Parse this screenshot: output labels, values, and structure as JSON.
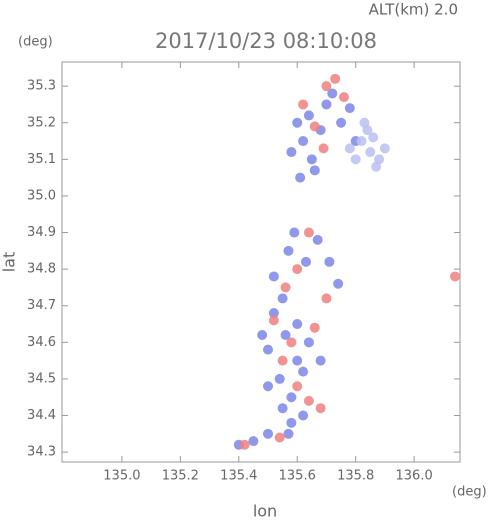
{
  "chart_data": {
    "type": "scatter",
    "alt_label": "ALT(km) 2.0",
    "title": "2017/10/23 08:10:08",
    "y_unit": "(deg)",
    "x_unit": "(deg)",
    "ylabel": "lat",
    "xlabel": "lon",
    "xlim": [
      134.795,
      136.157
    ],
    "ylim": [
      34.273,
      35.366
    ],
    "xticks": [
      {
        "value": 135,
        "label": "135.0"
      },
      135.2,
      135.4,
      135.6,
      135.8,
      {
        "value": 136,
        "label": "136.0"
      }
    ],
    "yticks": [
      34.3,
      34.4,
      34.5,
      34.6,
      34.7,
      34.8,
      34.9,
      {
        "value": 35,
        "label": "35.0"
      },
      35.1,
      35.2,
      35.3
    ],
    "series": [
      {
        "color": "#7c86e8",
        "x": [
          135.6,
          135.62,
          135.65,
          135.58,
          135.64,
          135.68,
          135.7,
          135.72,
          135.66,
          135.61,
          135.75,
          135.78,
          135.8,
          135.57,
          135.59,
          135.63,
          135.67,
          135.52,
          135.55,
          135.6,
          135.64,
          135.68,
          135.48,
          135.5,
          135.54,
          135.58,
          135.62,
          135.52,
          135.56,
          135.6,
          135.5,
          135.55,
          135.58,
          135.62,
          135.4,
          135.45,
          135.5,
          135.57,
          135.71,
          135.74
        ],
        "y": [
          35.2,
          35.15,
          35.1,
          35.12,
          35.22,
          35.18,
          35.25,
          35.28,
          35.07,
          35.05,
          35.2,
          35.24,
          35.15,
          34.85,
          34.9,
          34.82,
          34.88,
          34.78,
          34.72,
          34.65,
          34.6,
          34.55,
          34.62,
          34.58,
          34.5,
          34.45,
          34.52,
          34.68,
          34.62,
          34.55,
          34.48,
          34.42,
          34.38,
          34.4,
          34.32,
          34.33,
          34.35,
          34.35,
          34.82,
          34.76
        ]
      },
      {
        "color": "#f08080",
        "x": [
          135.7,
          135.73,
          135.76,
          135.66,
          135.62,
          135.69,
          135.6,
          135.56,
          135.64,
          135.52,
          135.58,
          135.66,
          135.55,
          135.6,
          135.64,
          135.68,
          135.42,
          135.54,
          135.7,
          136.14
        ],
        "y": [
          35.3,
          35.32,
          35.27,
          35.19,
          35.25,
          35.13,
          34.8,
          34.75,
          34.9,
          34.66,
          34.6,
          34.64,
          34.55,
          34.48,
          34.44,
          34.42,
          34.32,
          34.34,
          34.72,
          34.78
        ]
      },
      {
        "color": "#b8bff0",
        "x": [
          135.82,
          135.85,
          135.88,
          135.84,
          135.8,
          135.86,
          135.9,
          135.78,
          135.83,
          135.87
        ],
        "y": [
          35.15,
          35.12,
          35.1,
          35.18,
          35.1,
          35.16,
          35.13,
          35.13,
          35.2,
          35.08
        ]
      }
    ]
  }
}
